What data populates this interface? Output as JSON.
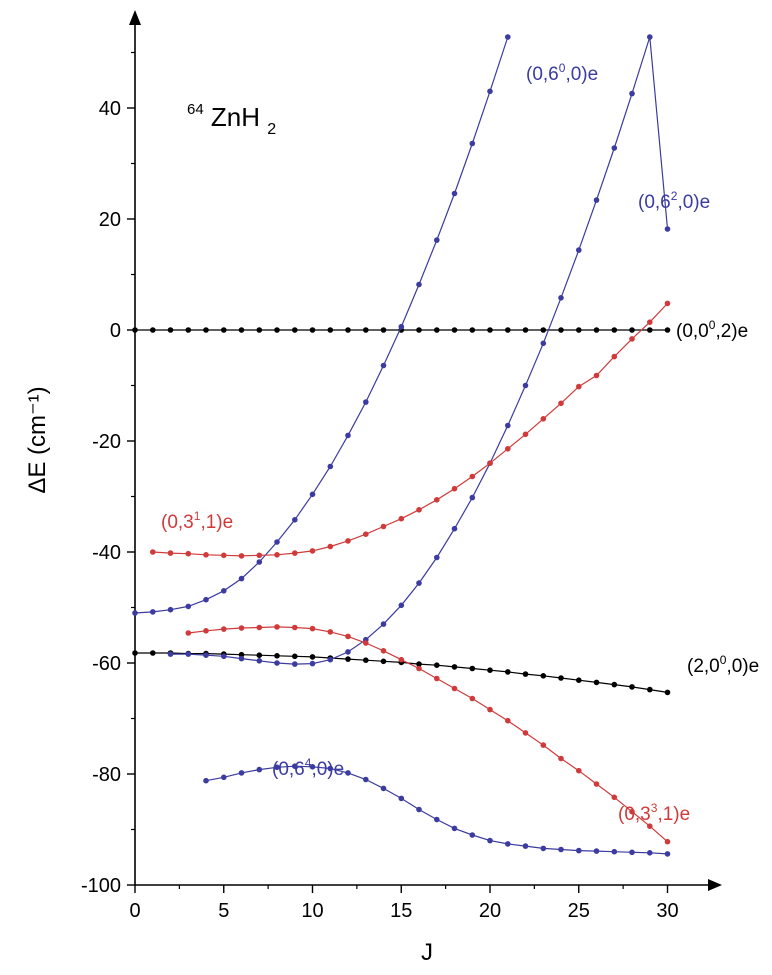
{
  "chart_data": {
    "type": "line",
    "title": "⁶⁴ZnH₂",
    "title_parts": {
      "mass": "64",
      "formula": "ZnH",
      "subscript": "2"
    },
    "xlabel": "J",
    "ylabel": "ΔE (cm⁻¹)",
    "xlim": [
      0,
      32
    ],
    "ylim": [
      -100,
      57
    ],
    "x_ticks": [
      0,
      5,
      10,
      15,
      20,
      25,
      30
    ],
    "y_ticks": [
      -100,
      -80,
      -60,
      -40,
      -20,
      0,
      20,
      40
    ],
    "grid": false,
    "series": [
      {
        "name": "(0,0⁰,2)e",
        "label_parts": {
          "pre": "(0,0",
          "sup": "0",
          "post": ",2)e"
        },
        "color": "#000000",
        "x": [
          0,
          1,
          2,
          3,
          4,
          5,
          6,
          7,
          8,
          9,
          10,
          11,
          12,
          13,
          14,
          15,
          16,
          17,
          18,
          19,
          20,
          21,
          22,
          23,
          24,
          25,
          26,
          27,
          28,
          29,
          30
        ],
        "y": [
          0,
          0,
          0,
          0,
          0,
          0,
          0,
          0,
          0,
          0,
          0,
          0,
          0,
          0,
          0,
          0,
          0,
          0,
          0,
          0,
          0,
          0,
          0,
          0,
          0,
          0,
          0,
          0,
          0,
          0,
          0
        ]
      },
      {
        "name": "(2,0⁰,0)e",
        "label_parts": {
          "pre": "(2,0",
          "sup": "0",
          "post": ",0)e"
        },
        "color": "#000000",
        "x": [
          0,
          1,
          2,
          3,
          4,
          5,
          6,
          7,
          8,
          9,
          10,
          11,
          12,
          13,
          14,
          15,
          16,
          17,
          18,
          19,
          20,
          21,
          22,
          23,
          24,
          25,
          26,
          27,
          28,
          29,
          30
        ],
        "y": [
          -58.2,
          -58.2,
          -58.2,
          -58.3,
          -58.3,
          -58.4,
          -58.5,
          -58.6,
          -58.7,
          -58.8,
          -58.9,
          -59.1,
          -59.3,
          -59.5,
          -59.7,
          -59.9,
          -60.2,
          -60.4,
          -60.7,
          -61.0,
          -61.3,
          -61.6,
          -62.0,
          -62.3,
          -62.7,
          -63.1,
          -63.5,
          -63.9,
          -64.3,
          -64.8,
          -65.3
        ]
      },
      {
        "name": "(0,6⁰,0)e",
        "label_parts": {
          "pre": "(0,6",
          "sup": "0",
          "post": ",0)e"
        },
        "color": "#3b3ba0",
        "x": [
          0,
          1,
          2,
          3,
          4,
          5,
          6,
          7,
          8,
          9,
          10,
          11,
          12,
          13,
          14,
          15,
          16,
          17,
          18,
          19,
          20,
          21
        ],
        "y": [
          -51.0,
          -50.8,
          -50.4,
          -49.8,
          -48.6,
          -47.0,
          -44.8,
          -41.8,
          -38.2,
          -34.2,
          -29.6,
          -24.6,
          -19.0,
          -13.0,
          -6.4,
          0.6,
          8.2,
          16.2,
          24.6,
          33.6,
          43.0,
          52.8
        ]
      },
      {
        "name": "(0,6²,0)e",
        "label_parts": {
          "pre": "(0,6",
          "sup": "2",
          "post": ",0)e"
        },
        "color": "#3b3ba0",
        "x": [
          2,
          3,
          4,
          5,
          6,
          7,
          8,
          9,
          10,
          11,
          12,
          13,
          14,
          15,
          16,
          17,
          18,
          19,
          20,
          21,
          22,
          23,
          24,
          25,
          26,
          27,
          28,
          29,
          30
        ],
        "y": [
          -58.4,
          -58.4,
          -58.6,
          -58.8,
          -59.2,
          -59.6,
          -60.0,
          -60.2,
          -60.1,
          -59.4,
          -58.0,
          -55.8,
          -53.0,
          -49.6,
          -45.6,
          -41.0,
          -35.8,
          -30.2,
          -24.0,
          -17.2,
          -10.0,
          -2.4,
          5.8,
          14.4,
          23.4,
          32.8,
          42.6,
          52.8,
          18.2
        ]
      },
      {
        "name": "(0,6⁴,0)e",
        "label_parts": {
          "pre": "(0,6",
          "sup": "4",
          "post": ",0)e"
        },
        "color": "#3b3ba0",
        "x": [
          4,
          5,
          6,
          7,
          8,
          9,
          10,
          11,
          12,
          13,
          14,
          15,
          16,
          17,
          18,
          19,
          20,
          21,
          22,
          23,
          24,
          25,
          26,
          27,
          28,
          29,
          30
        ],
        "y": [
          -81.2,
          -80.6,
          -79.8,
          -79.2,
          -78.8,
          -78.6,
          -78.7,
          -79.0,
          -79.8,
          -81.0,
          -82.6,
          -84.4,
          -86.4,
          -88.2,
          -89.8,
          -91.0,
          -92.0,
          -92.6,
          -93.0,
          -93.4,
          -93.6,
          -93.8,
          -93.9,
          -94.0,
          -94.1,
          -94.2,
          -94.4
        ]
      },
      {
        "name": "(0,3¹,1)e",
        "label_parts": {
          "pre": "(0,3",
          "sup": "1",
          "post": ",1)e"
        },
        "color": "#d03a3a",
        "x": [
          1,
          2,
          3,
          4,
          5,
          6,
          7,
          8,
          9,
          10,
          11,
          12,
          13,
          14,
          15,
          16,
          17,
          18,
          19,
          20,
          21,
          22,
          23,
          24,
          25,
          26,
          27,
          28,
          29,
          30
        ],
        "y": [
          -40.0,
          -40.2,
          -40.3,
          -40.5,
          -40.6,
          -40.7,
          -40.6,
          -40.5,
          -40.2,
          -39.8,
          -39.0,
          -38.0,
          -36.8,
          -35.4,
          -34.0,
          -32.4,
          -30.6,
          -28.6,
          -26.4,
          -24.0,
          -21.4,
          -18.8,
          -16.0,
          -13.2,
          -10.2,
          -8.2,
          -4.8,
          -1.6,
          1.4,
          4.8
        ]
      },
      {
        "name": "(0,3³,1)e",
        "label_parts": {
          "pre": "(0,3",
          "sup": "3",
          "post": ",1)e"
        },
        "color": "#d03a3a",
        "x": [
          3,
          4,
          5,
          6,
          7,
          8,
          9,
          10,
          11,
          12,
          13,
          14,
          15,
          16,
          17,
          18,
          19,
          20,
          21,
          22,
          23,
          24,
          25,
          26,
          27,
          28,
          29,
          30
        ],
        "y": [
          -54.6,
          -54.2,
          -53.9,
          -53.7,
          -53.6,
          -53.5,
          -53.6,
          -53.8,
          -54.4,
          -55.2,
          -56.4,
          -57.8,
          -59.4,
          -61.0,
          -62.8,
          -64.6,
          -66.4,
          -68.4,
          -70.4,
          -72.6,
          -74.8,
          -77.2,
          -79.4,
          -81.8,
          -84.2,
          -86.8,
          -89.4,
          -92.2
        ]
      }
    ]
  }
}
